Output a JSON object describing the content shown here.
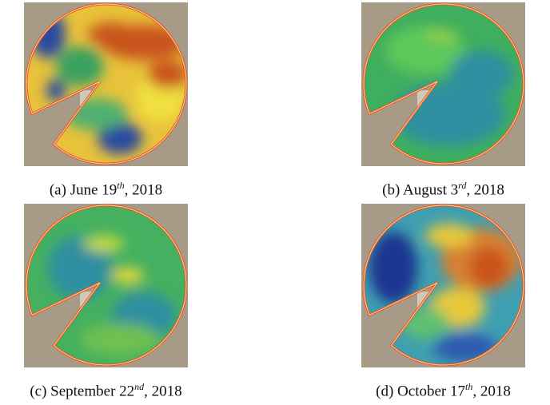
{
  "panels": [
    {
      "label": "(a)",
      "date": "June 19",
      "suffix": "th",
      "rest": ", 2018"
    },
    {
      "label": "(b)",
      "date": "August 3",
      "suffix": "rd",
      "rest": ", 2018"
    },
    {
      "label": "(c)",
      "date": "September 22",
      "suffix": "nd",
      "rest": ", 2018"
    },
    {
      "label": "(d)",
      "date": "October 17",
      "suffix": "th",
      "rest": ", 2018"
    }
  ]
}
